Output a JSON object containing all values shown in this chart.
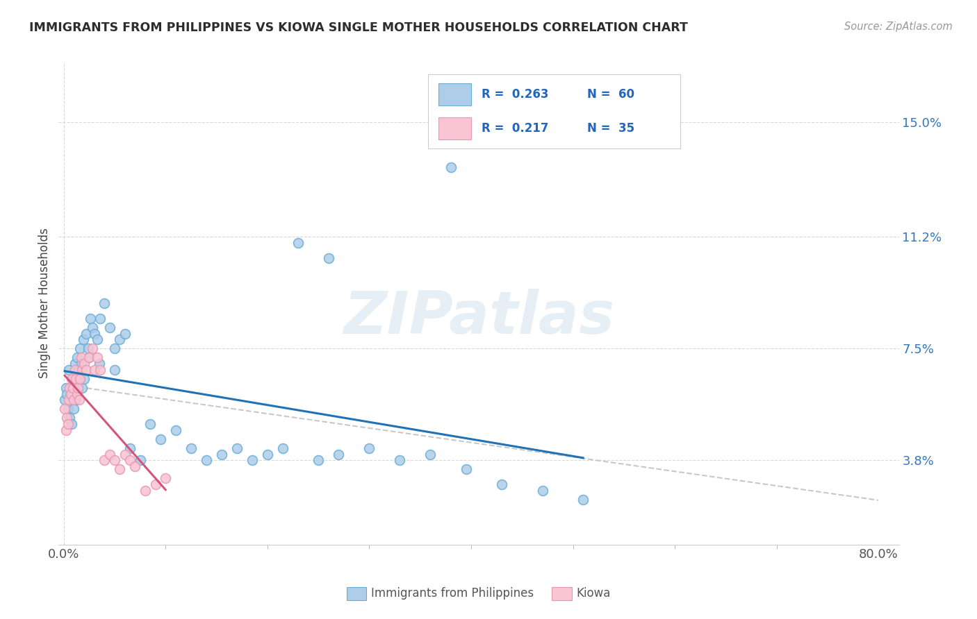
{
  "title": "IMMIGRANTS FROM PHILIPPINES VS KIOWA SINGLE MOTHER HOUSEHOLDS CORRELATION CHART",
  "source_text": "Source: ZipAtlas.com",
  "ylabel": "Single Mother Households",
  "xlim": [
    -0.005,
    0.82
  ],
  "ylim": [
    0.01,
    0.17
  ],
  "xtick_vals": [
    0.0,
    0.8
  ],
  "xtick_labels": [
    "0.0%",
    "80.0%"
  ],
  "ytick_vals": [
    0.038,
    0.075,
    0.112,
    0.15
  ],
  "ytick_labels": [
    "3.8%",
    "7.5%",
    "11.2%",
    "15.0%"
  ],
  "blue_color": "#aecde8",
  "blue_edge_color": "#6aaed6",
  "pink_color": "#f9c4d4",
  "pink_edge_color": "#e899b0",
  "blue_line_color": "#2171b5",
  "pink_line_color": "#d4547a",
  "grey_dash_color": "#c8c8c8",
  "grid_color": "#d8d8d8",
  "legend_R1": "0.263",
  "legend_N1": "60",
  "legend_R2": "0.217",
  "legend_N2": "35",
  "legend_label1": "Immigrants from Philippines",
  "legend_label2": "Kiowa",
  "watermark": "ZIPatlas",
  "title_color": "#2d2d2d",
  "source_color": "#999999",
  "ylabel_color": "#444444",
  "ytick_color": "#3377bb",
  "xtick_color": "#555555",
  "blue_x": [
    0.001,
    0.002,
    0.003,
    0.004,
    0.005,
    0.006,
    0.007,
    0.008,
    0.009,
    0.01,
    0.011,
    0.012,
    0.013,
    0.014,
    0.015,
    0.016,
    0.017,
    0.018,
    0.019,
    0.02,
    0.022,
    0.024,
    0.026,
    0.028,
    0.03,
    0.033,
    0.036,
    0.04,
    0.045,
    0.05,
    0.055,
    0.06,
    0.065,
    0.075,
    0.085,
    0.095,
    0.11,
    0.125,
    0.14,
    0.155,
    0.17,
    0.185,
    0.2,
    0.215,
    0.23,
    0.25,
    0.27,
    0.3,
    0.33,
    0.36,
    0.395,
    0.43,
    0.47,
    0.51,
    0.015,
    0.025,
    0.035,
    0.05,
    0.26,
    0.38
  ],
  "blue_y": [
    0.058,
    0.062,
    0.06,
    0.055,
    0.068,
    0.052,
    0.06,
    0.05,
    0.065,
    0.055,
    0.07,
    0.058,
    0.072,
    0.065,
    0.068,
    0.075,
    0.07,
    0.062,
    0.078,
    0.065,
    0.08,
    0.075,
    0.085,
    0.082,
    0.08,
    0.078,
    0.085,
    0.09,
    0.082,
    0.075,
    0.078,
    0.08,
    0.042,
    0.038,
    0.05,
    0.045,
    0.048,
    0.042,
    0.038,
    0.04,
    0.042,
    0.038,
    0.04,
    0.042,
    0.11,
    0.038,
    0.04,
    0.042,
    0.038,
    0.04,
    0.035,
    0.03,
    0.028,
    0.025,
    0.065,
    0.072,
    0.07,
    0.068,
    0.105,
    0.135
  ],
  "pink_x": [
    0.001,
    0.002,
    0.003,
    0.004,
    0.005,
    0.006,
    0.007,
    0.008,
    0.009,
    0.01,
    0.011,
    0.012,
    0.013,
    0.014,
    0.015,
    0.016,
    0.017,
    0.018,
    0.02,
    0.022,
    0.025,
    0.028,
    0.03,
    0.033,
    0.036,
    0.04,
    0.045,
    0.05,
    0.055,
    0.06,
    0.065,
    0.07,
    0.08,
    0.09,
    0.1
  ],
  "pink_y": [
    0.055,
    0.048,
    0.052,
    0.05,
    0.058,
    0.062,
    0.06,
    0.065,
    0.062,
    0.058,
    0.068,
    0.065,
    0.06,
    0.062,
    0.058,
    0.065,
    0.072,
    0.068,
    0.07,
    0.068,
    0.072,
    0.075,
    0.068,
    0.072,
    0.068,
    0.038,
    0.04,
    0.038,
    0.035,
    0.04,
    0.038,
    0.036,
    0.028,
    0.03,
    0.032
  ]
}
